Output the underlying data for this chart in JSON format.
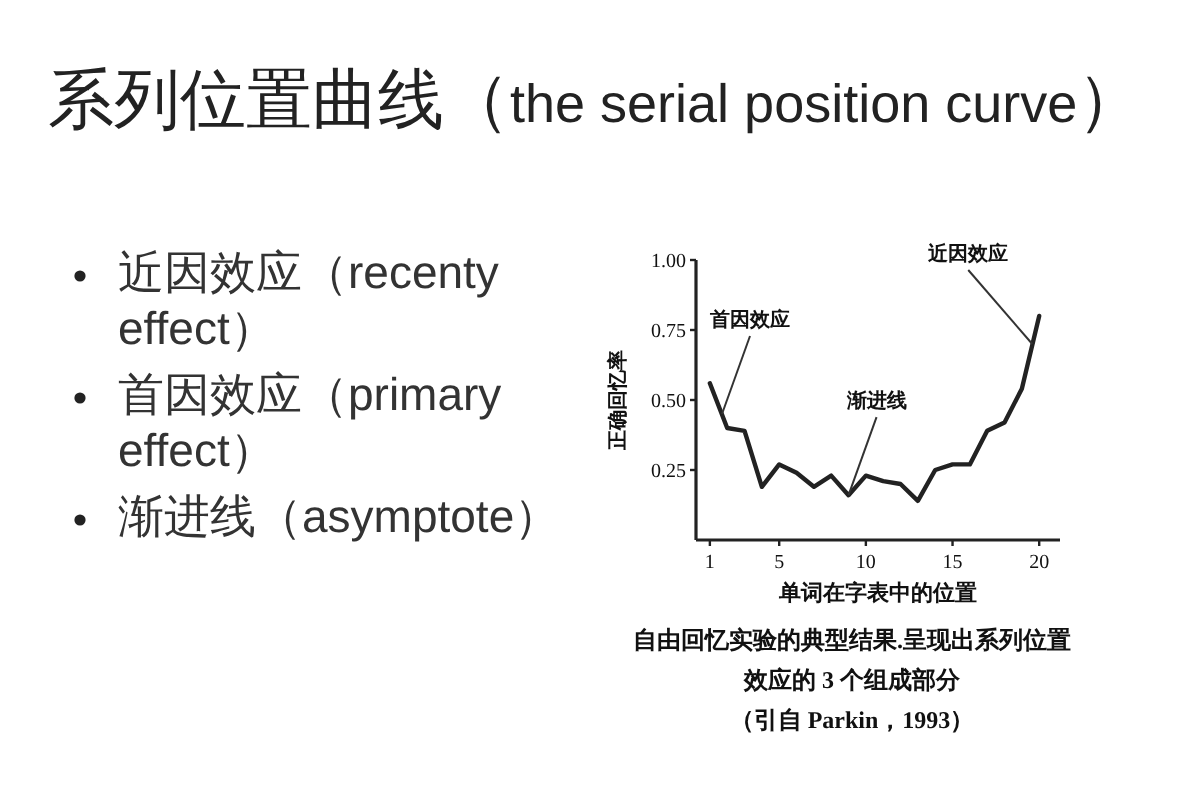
{
  "chart_data": {
    "type": "line",
    "title": "系列位置曲线（the serial position curve）",
    "xlabel": "单词在字表中的位置",
    "ylabel": "正确回忆率",
    "x": [
      1,
      2,
      3,
      4,
      5,
      6,
      7,
      8,
      9,
      10,
      11,
      12,
      13,
      14,
      15,
      16,
      17,
      18,
      19,
      20
    ],
    "series": [
      {
        "color": "#222222",
        "values": [
          0.56,
          0.4,
          0.39,
          0.19,
          0.27,
          0.24,
          0.19,
          0.23,
          0.16,
          0.23,
          0.21,
          0.2,
          0.14,
          0.25,
          0.27,
          0.27,
          0.39,
          0.42,
          0.54,
          0.8
        ]
      }
    ],
    "xlim": [
      0.2,
      21.2
    ],
    "xticks": [
      1,
      5,
      10,
      15,
      20
    ],
    "ylim": [
      0,
      1
    ],
    "yticks": [
      {
        "value": 0.25,
        "label": "0.25"
      },
      {
        "value": 0.5,
        "label": "0.50"
      },
      {
        "value": 0.75,
        "label": "0.75"
      },
      {
        "value": 1,
        "label": "1.00"
      }
    ],
    "annotations": [
      {
        "text": "首因效应",
        "x": 1.7,
        "y": 0.45
      },
      {
        "text": "渐进线",
        "x": 9,
        "y": 0.16
      },
      {
        "text": "近因效应",
        "x": 19.6,
        "y": 0.7
      },
      "近因效应（recenty effect）",
      "首因效应（primary effect）",
      "渐进线（asymptote）",
      "自由回忆实验的典型结果.呈现出系列位置效应的 3 个组成部分",
      "（引自 Parkin，1993）"
    ]
  }
}
